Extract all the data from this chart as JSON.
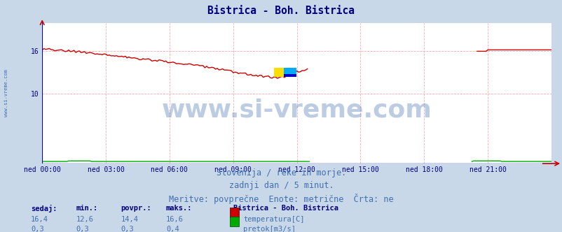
{
  "title": "Bistrica - Boh. Bistrica",
  "title_color": "#000080",
  "bg_color": "#c8d8e8",
  "plot_bg_color": "#ffffff",
  "grid_color": "#ffaaaa",
  "xlabel": "",
  "ylabel": "",
  "ylim": [
    0,
    20
  ],
  "ytick_positions": [
    10,
    16
  ],
  "ytick_labels": [
    "10",
    "16"
  ],
  "xtick_positions": [
    0,
    3,
    6,
    9,
    12,
    15,
    18,
    21
  ],
  "xtick_labels": [
    "ned 00:00",
    "ned 03:00",
    "ned 06:00",
    "ned 09:00",
    "ned 12:00",
    "ned 15:00",
    "ned 18:00",
    "ned 21:00"
  ],
  "tick_color": "#000080",
  "watermark_text": "www.si-vreme.com",
  "watermark_color": "#4070b0",
  "watermark_alpha": 0.35,
  "watermark_fontsize": 26,
  "sub_text1": "Slovenija / reke in morje.",
  "sub_text2": "zadnji dan / 5 minut.",
  "sub_text3": "Meritve: povprečne  Enote: metrične  Črta: ne",
  "sub_color": "#4070b0",
  "sub_fontsize": 8.5,
  "legend_station": "Bistrica - Boh. Bistrica",
  "legend_color": "#000080",
  "legend_items": [
    {
      "label": "temperatura[C]",
      "color": "#cc0000"
    },
    {
      "label": "pretok[m3/s]",
      "color": "#00aa00"
    }
  ],
  "stats_headers": [
    "sedaj:",
    "min.:",
    "povpr.:",
    "maks.:"
  ],
  "stats_temp": [
    "16,4",
    "12,6",
    "14,4",
    "16,6"
  ],
  "stats_flow": [
    "0,3",
    "0,3",
    "0,3",
    "0,4"
  ],
  "sidebar_text": "www.si-vreme.com",
  "sidebar_color": "#4070b0",
  "temp_color": "#cc0000",
  "flow_color": "#00aa00",
  "left_axis_color": "#0000cc",
  "bottom_axis_color": "#0000cc",
  "arrow_color": "#cc0000"
}
